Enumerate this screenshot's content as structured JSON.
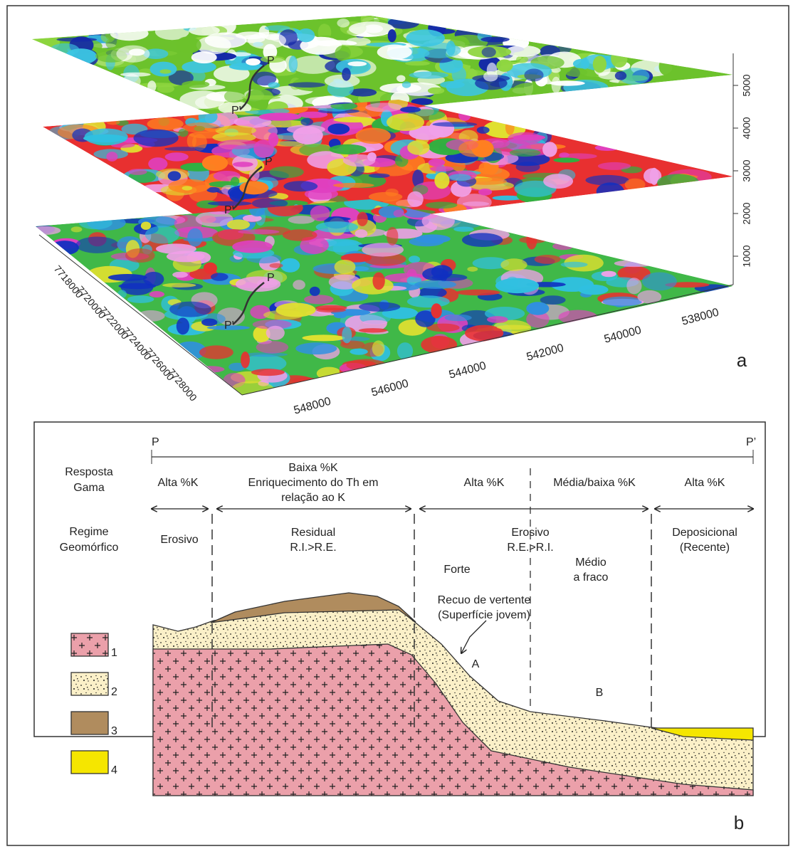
{
  "panel_a": {
    "label": "a",
    "vertical_axis_ticks": [
      1000,
      2000,
      3000,
      4000,
      5000
    ],
    "easting_ticks": [
      548000,
      546000,
      544000,
      542000,
      540000,
      538000
    ],
    "northing_ticks": [
      7718000,
      7720000,
      7722000,
      7724000,
      7726000,
      7728000
    ],
    "profiles": [
      {
        "start": "P'",
        "end": "P"
      },
      {
        "start": "P'",
        "end": "P"
      },
      {
        "start": "P'",
        "end": "P"
      }
    ]
  },
  "panel_b": {
    "label": "b",
    "profile_start": "P",
    "profile_end": "P’",
    "row_titles": {
      "gamma": [
        "Resposta",
        "Gama"
      ],
      "regime": [
        "Regime",
        "Geomórfico"
      ]
    },
    "gamma_response": [
      [
        "Alta %K"
      ],
      [
        "Baixa %K",
        "Enriquecimento do Th em",
        "relação ao K"
      ],
      [
        "Alta %K"
      ],
      [
        "Média/baixa %K"
      ],
      [
        "Alta %K"
      ]
    ],
    "regime": [
      [
        "Erosivo"
      ],
      [
        "Residual",
        "R.I.>R.E."
      ],
      [
        "Erosivo",
        "R.E.>R.I."
      ],
      [
        "Deposicional",
        "(Recente)"
      ]
    ],
    "erosion_intensity": [
      [
        "Forte"
      ],
      [
        "Médio",
        "a fraco"
      ]
    ],
    "annotation": [
      "Recuo de vertente",
      "(Superfície jovem)"
    ],
    "points": [
      "A",
      "B"
    ],
    "legend": [
      1,
      2,
      3,
      4
    ]
  }
}
